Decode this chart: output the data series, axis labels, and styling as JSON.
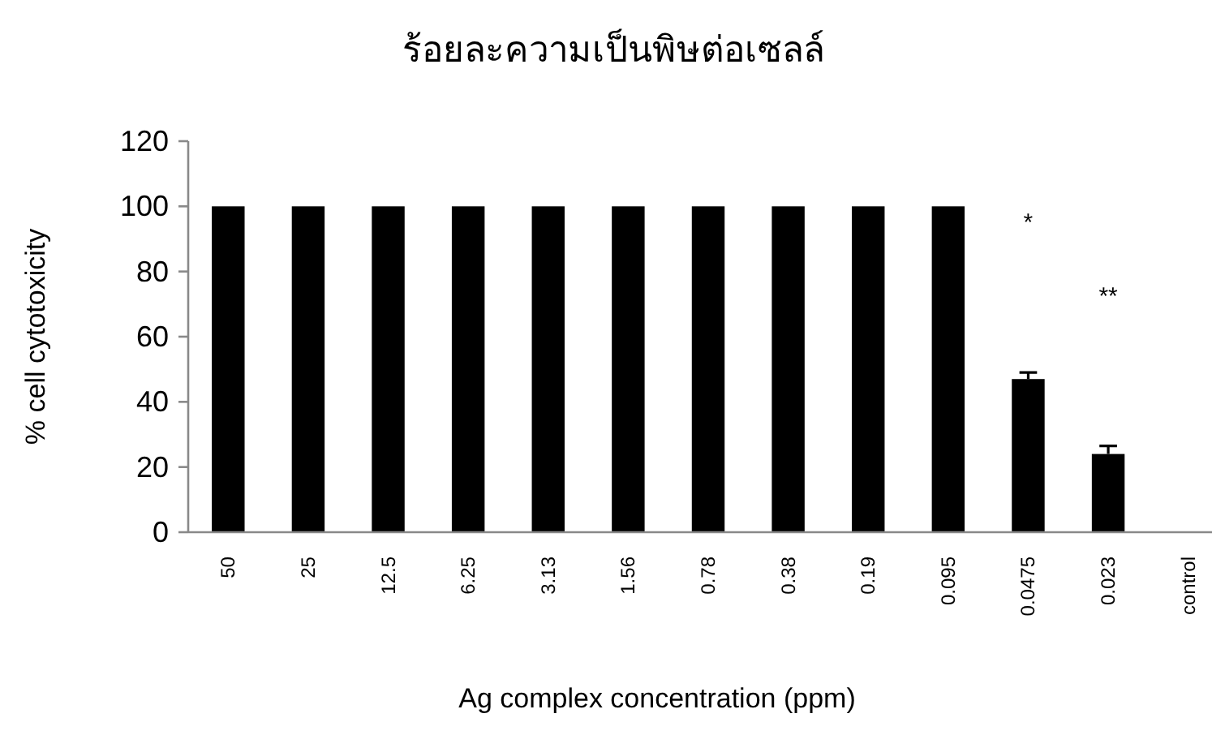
{
  "chart_data": {
    "type": "bar",
    "title": "ร้อยละความเป็นพิษต่อเซลล์",
    "xlabel": "Ag complex concentration (ppm)",
    "ylabel": "% cell cytotoxicity",
    "categories": [
      "50",
      "25",
      "12.5",
      "6.25",
      "3.13",
      "1.56",
      "0.78",
      "0.38",
      "0.19",
      "0.095",
      "0.0475",
      "0.023",
      "control"
    ],
    "values": [
      100,
      100,
      100,
      100,
      100,
      100,
      100,
      100,
      100,
      100,
      47,
      24,
      0
    ],
    "errors": [
      null,
      null,
      null,
      null,
      null,
      null,
      null,
      null,
      null,
      null,
      [
        47,
        49
      ],
      [
        24,
        26.5
      ],
      null
    ],
    "color": "#000000",
    "ylim": [
      0,
      120
    ],
    "yticks": [
      0,
      20,
      40,
      60,
      80,
      100,
      120
    ],
    "annotations": [
      "*",
      "**"
    ]
  }
}
